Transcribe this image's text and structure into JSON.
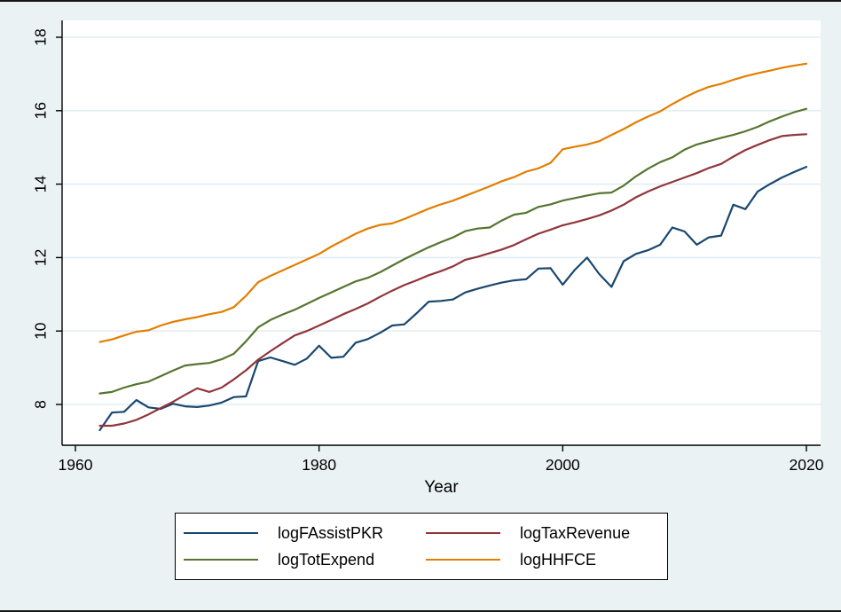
{
  "window": {
    "background_color": "#eaf2f3",
    "plot_background_color": "#ffffff",
    "border_color": "#151515"
  },
  "colors": {
    "navy": "#1a476f",
    "maroon": "#90353b",
    "forest_green": "#55752f",
    "orange": "#e37e00",
    "gridline": "#e3eef3",
    "axis": "#000000",
    "text": "#000000"
  },
  "chart_data": {
    "type": "line",
    "title": "",
    "xlabel": "Year",
    "ylabel": "",
    "x_ticks": [
      1960,
      1980,
      2000,
      2020
    ],
    "y_ticks": [
      8,
      10,
      12,
      14,
      16,
      18
    ],
    "xlim": [
      1958.9,
      2021.2
    ],
    "ylim": [
      6.85,
      18.45
    ],
    "grid": true,
    "legend_position": "bottom",
    "x": [
      1962,
      1963,
      1964,
      1965,
      1966,
      1967,
      1968,
      1969,
      1970,
      1971,
      1972,
      1973,
      1974,
      1975,
      1976,
      1977,
      1978,
      1979,
      1980,
      1981,
      1982,
      1983,
      1984,
      1985,
      1986,
      1987,
      1988,
      1989,
      1990,
      1991,
      1992,
      1993,
      1994,
      1995,
      1996,
      1997,
      1998,
      1999,
      2000,
      2001,
      2002,
      2003,
      2004,
      2005,
      2006,
      2007,
      2008,
      2009,
      2010,
      2011,
      2012,
      2013,
      2014,
      2015,
      2016,
      2017,
      2018,
      2019,
      2020
    ],
    "series": [
      {
        "name": "logFAssistPKR",
        "color": "#1a476f",
        "values": [
          7.3,
          7.78,
          7.8,
          8.12,
          7.92,
          7.88,
          8.02,
          7.95,
          7.93,
          7.97,
          8.05,
          8.2,
          8.22,
          9.18,
          9.28,
          9.18,
          9.08,
          9.25,
          9.6,
          9.27,
          9.3,
          9.68,
          9.78,
          9.95,
          10.15,
          10.18,
          10.48,
          10.8,
          10.82,
          10.86,
          11.05,
          11.15,
          11.24,
          11.32,
          11.38,
          11.41,
          11.7,
          11.71,
          11.26,
          11.67,
          12.0,
          11.55,
          11.2,
          11.9,
          12.1,
          12.2,
          12.35,
          12.82,
          12.71,
          12.35,
          12.55,
          12.6,
          13.44,
          13.32,
          13.8,
          14.0,
          14.18,
          14.33,
          14.47
        ]
      },
      {
        "name": "logTaxRevenue",
        "color": "#90353b",
        "values": [
          7.42,
          7.42,
          7.48,
          7.58,
          7.73,
          7.9,
          8.07,
          8.26,
          8.44,
          8.34,
          8.46,
          8.68,
          8.93,
          9.22,
          9.45,
          9.67,
          9.88,
          10.0,
          10.15,
          10.3,
          10.46,
          10.6,
          10.75,
          10.93,
          11.1,
          11.25,
          11.38,
          11.52,
          11.63,
          11.76,
          11.94,
          12.02,
          12.12,
          12.22,
          12.34,
          12.5,
          12.65,
          12.76,
          12.88,
          12.96,
          13.05,
          13.15,
          13.28,
          13.44,
          13.64,
          13.8,
          13.94,
          14.06,
          14.18,
          14.3,
          14.44,
          14.55,
          14.75,
          14.93,
          15.07,
          15.2,
          15.31,
          15.34,
          15.36
        ]
      },
      {
        "name": "logTotExpend",
        "color": "#55752f",
        "values": [
          8.3,
          8.34,
          8.46,
          8.55,
          8.62,
          8.77,
          8.92,
          9.06,
          9.1,
          9.13,
          9.23,
          9.38,
          9.72,
          10.1,
          10.3,
          10.45,
          10.58,
          10.74,
          10.9,
          11.05,
          11.2,
          11.35,
          11.45,
          11.6,
          11.78,
          11.96,
          12.12,
          12.28,
          12.42,
          12.55,
          12.72,
          12.79,
          12.82,
          13.01,
          13.17,
          13.22,
          13.38,
          13.45,
          13.55,
          13.62,
          13.69,
          13.75,
          13.77,
          13.96,
          14.21,
          14.42,
          14.6,
          14.73,
          14.94,
          15.08,
          15.17,
          15.26,
          15.34,
          15.44,
          15.56,
          15.71,
          15.84,
          15.96,
          16.05
        ]
      },
      {
        "name": "logHHFCE",
        "color": "#e37e00",
        "values": [
          9.7,
          9.77,
          9.88,
          9.98,
          10.02,
          10.15,
          10.25,
          10.32,
          10.38,
          10.46,
          10.52,
          10.65,
          10.96,
          11.33,
          11.5,
          11.65,
          11.8,
          11.95,
          12.1,
          12.3,
          12.47,
          12.65,
          12.79,
          12.89,
          12.93,
          13.05,
          13.19,
          13.33,
          13.45,
          13.55,
          13.68,
          13.81,
          13.94,
          14.08,
          14.19,
          14.34,
          14.43,
          14.58,
          14.95,
          15.02,
          15.08,
          15.17,
          15.34,
          15.5,
          15.68,
          15.84,
          15.98,
          16.18,
          16.36,
          16.52,
          16.65,
          16.73,
          16.84,
          16.94,
          17.02,
          17.09,
          17.17,
          17.23,
          17.28
        ]
      }
    ]
  },
  "legend": {
    "items": [
      {
        "label": "logFAssistPKR",
        "color": "#1a476f"
      },
      {
        "label": "logTaxRevenue",
        "color": "#90353b"
      },
      {
        "label": "logTotExpend",
        "color": "#55752f"
      },
      {
        "label": "logHHFCE",
        "color": "#e37e00"
      }
    ]
  }
}
